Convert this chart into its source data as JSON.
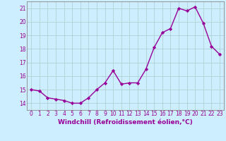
{
  "x": [
    0,
    1,
    2,
    3,
    4,
    5,
    6,
    7,
    8,
    9,
    10,
    11,
    12,
    13,
    14,
    15,
    16,
    17,
    18,
    19,
    20,
    21,
    22,
    23
  ],
  "y": [
    15.0,
    14.9,
    14.4,
    14.3,
    14.2,
    14.0,
    14.0,
    14.4,
    15.0,
    15.5,
    16.4,
    15.4,
    15.5,
    15.5,
    16.5,
    18.1,
    19.2,
    19.5,
    21.0,
    20.8,
    21.1,
    19.9,
    18.2,
    17.6
  ],
  "line_color": "#990099",
  "marker": "D",
  "marker_size": 2.2,
  "bg_color": "#cceeff",
  "grid_color": "#aacccc",
  "xlabel": "Windchill (Refroidissement éolien,°C)",
  "xlabel_fontsize": 6.5,
  "ylim": [
    13.5,
    21.5
  ],
  "yticks": [
    14,
    15,
    16,
    17,
    18,
    19,
    20,
    21
  ],
  "xticks": [
    0,
    1,
    2,
    3,
    4,
    5,
    6,
    7,
    8,
    9,
    10,
    11,
    12,
    13,
    14,
    15,
    16,
    17,
    18,
    19,
    20,
    21,
    22,
    23
  ],
  "tick_fontsize": 5.5,
  "line_width": 1.0
}
